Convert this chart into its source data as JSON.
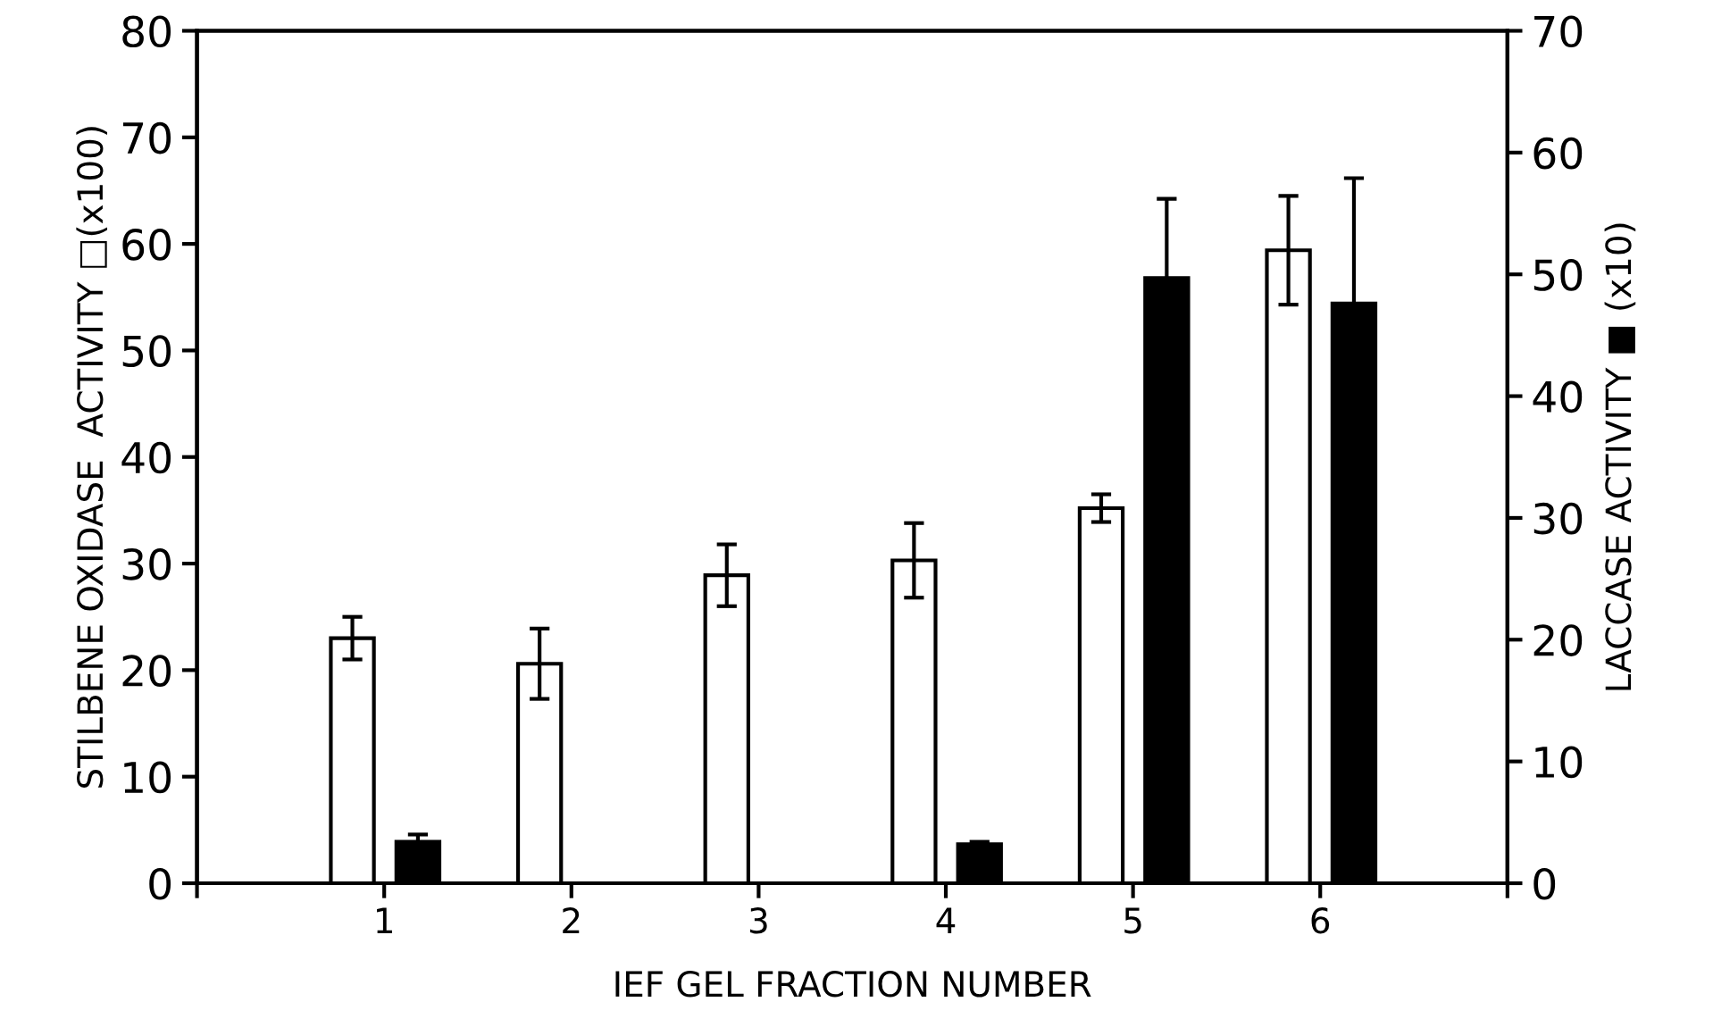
{
  "chart_data": {
    "type": "bar",
    "xlabel": "IEF GEL FRACTION NUMBER",
    "ylabel": "STILBENE OXIDASE  ACTIVITY □(x100)",
    "y2label": "LACCASE ACTIVITY ■ (x10)",
    "x": [
      1,
      2,
      3,
      4,
      5,
      6
    ],
    "xlim": [
      0,
      7
    ],
    "xticks": [
      {
        "value": 0,
        "label": null
      },
      1,
      2,
      3,
      4,
      5,
      6,
      {
        "value": 7,
        "label": null
      }
    ],
    "ylim": [
      0,
      80
    ],
    "yticks": [
      0,
      10,
      20,
      30,
      40,
      50,
      60,
      70,
      80
    ],
    "y2lim": [
      0,
      70
    ],
    "y2ticks": [
      0,
      10,
      20,
      30,
      40,
      50,
      60,
      70
    ],
    "series": [
      {
        "color": "#ffffff",
        "values": [
          23.0,
          20.6,
          28.9,
          30.3,
          35.2,
          59.4
        ],
        "errors": [
          2.0,
          3.3,
          2.9,
          3.5,
          1.3,
          5.1
        ]
      },
      {
        "color": "#000000",
        "axis": "y2",
        "values": [
          3.4,
          null,
          null,
          3.2,
          49.7,
          47.6
        ],
        "errors": [
          0.6,
          null,
          null,
          0.2,
          6.5,
          10.3
        ]
      }
    ],
    "grid": false,
    "legend": false
  }
}
